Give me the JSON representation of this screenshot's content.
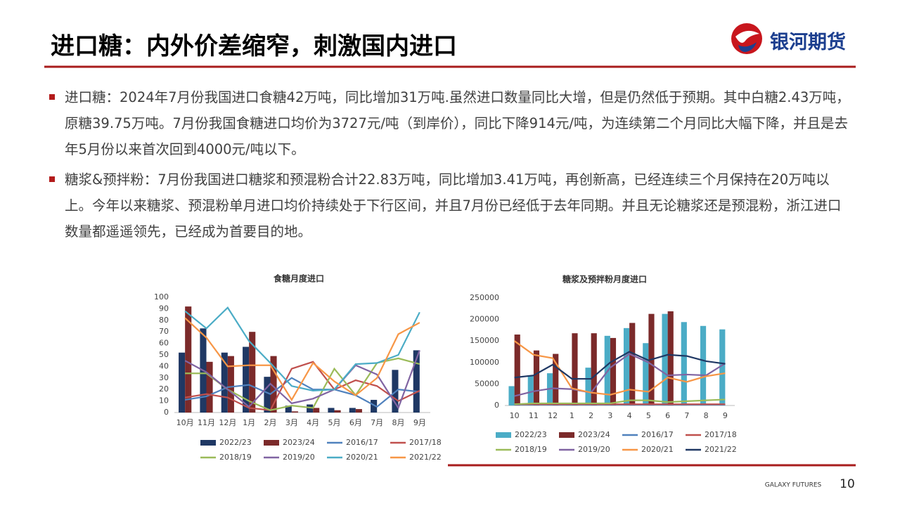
{
  "header": {
    "title": "进口糖：内外价差缩窄，刺激国内进口",
    "logo": "银河期货"
  },
  "bullets": [
    "进口糖：2024年7月份我国进口食糖42万吨，同比增加31万吨.虽然进口数量同比大增，但是仍然低于预期。其中白糖2.43万吨，原糖39.75万吨。7月份我国食糖进口均价为3727元/吨（到岸价），同比下降914元/吨，为连续第二个月同比大幅下降，并且是去年5月份以来首次回到4000元/吨以下。",
    "糖浆&预拌粉：7月份我国进口糖浆和预混粉合计22.83万吨，同比增加3.41万吨，再创新高，已经连续三个月保持在20万吨以上。今年以来糖浆、预混粉单月进口均价持续处于下行区间，并且7月份已经低于去年同期。并且无论糖浆还是预混粉，浙江进口数量都遥遥领先，已经成为首要目的地。"
  ],
  "chart_data": [
    {
      "type": "bar",
      "title": "食糖月度进口",
      "categories": [
        "10月",
        "11月",
        "12月",
        "1月",
        "2月",
        "3月",
        "4月",
        "5月",
        "6月",
        "7月",
        "8月",
        "9月"
      ],
      "ylim": [
        0,
        100
      ],
      "yticks": [
        0,
        10,
        20,
        30,
        40,
        50,
        60,
        70,
        80,
        90,
        100
      ],
      "series": [
        {
          "name": "2022/23",
          "type": "bar",
          "color": "#1f3864",
          "values": [
            52,
            73,
            52,
            57,
            31,
            6,
            7,
            4,
            4,
            11,
            37,
            54
          ]
        },
        {
          "name": "2023/24",
          "type": "bar",
          "color": "#7b2a2a",
          "values": [
            92,
            44,
            49,
            70,
            49,
            1,
            4,
            2,
            3,
            null,
            null,
            null
          ]
        },
        {
          "name": "2016/17",
          "type": "line",
          "color": "#4f81bd",
          "values": [
            11,
            14,
            22,
            24,
            16,
            30,
            20,
            20,
            15,
            5,
            20,
            18
          ]
        },
        {
          "name": "2017/18",
          "type": "line",
          "color": "#c0504d",
          "values": [
            13,
            16,
            13,
            4,
            2,
            38,
            44,
            20,
            28,
            23,
            10,
            19
          ]
        },
        {
          "name": "2018/19",
          "type": "line",
          "color": "#9bbb59",
          "values": [
            34,
            34,
            20,
            10,
            2,
            6,
            4,
            38,
            15,
            43,
            47,
            42
          ]
        },
        {
          "name": "2019/20",
          "type": "line",
          "color": "#8064a2",
          "values": [
            45,
            35,
            20,
            5,
            25,
            8,
            12,
            20,
            41,
            33,
            4,
            54
          ]
        },
        {
          "name": "2020/21",
          "type": "line",
          "color": "#4bacc6",
          "values": [
            88,
            73,
            91,
            62,
            43,
            23,
            19,
            20,
            42,
            43,
            50,
            87
          ]
        },
        {
          "name": "2021/22",
          "type": "line",
          "color": "#f79646",
          "values": [
            82,
            65,
            40,
            41,
            41,
            11,
            43,
            27,
            15,
            30,
            68,
            78
          ]
        }
      ]
    },
    {
      "type": "bar",
      "title": "糖浆及预拌粉月度进口",
      "categories": [
        "10",
        "11",
        "12",
        "1",
        "2",
        "3",
        "4",
        "5",
        "6",
        "7",
        "8",
        "9"
      ],
      "ylim": [
        0,
        250000
      ],
      "yticks": [
        0,
        50000,
        100000,
        150000,
        200000,
        250000
      ],
      "series": [
        {
          "name": "2022/23",
          "type": "bar",
          "color": "#4bacc6",
          "values": [
            45000,
            70000,
            75000,
            5000,
            88000,
            162000,
            180000,
            145000,
            213000,
            194000,
            185000,
            177000
          ]
        },
        {
          "name": "2023/24",
          "type": "bar",
          "color": "#7b2a2a",
          "values": [
            165000,
            128000,
            120000,
            168000,
            168000,
            157000,
            192000,
            213000,
            219000,
            null,
            null,
            null
          ]
        },
        {
          "name": "2016/17",
          "type": "line",
          "color": "#4f81bd",
          "values": [
            2000,
            2000,
            2000,
            2000,
            2000,
            2000,
            2000,
            2000,
            2000,
            2000,
            2000,
            2000
          ]
        },
        {
          "name": "2017/18",
          "type": "line",
          "color": "#c0504d",
          "values": [
            3000,
            3000,
            3000,
            3000,
            3000,
            3000,
            3000,
            3000,
            3000,
            3000,
            3000,
            3000
          ]
        },
        {
          "name": "2018/19",
          "type": "line",
          "color": "#9bbb59",
          "values": [
            3000,
            5000,
            5000,
            5000,
            5000,
            5000,
            12000,
            12000,
            8000,
            10000,
            12000,
            14000
          ]
        },
        {
          "name": "2019/20",
          "type": "line",
          "color": "#8064a2",
          "values": [
            22000,
            33000,
            40000,
            38000,
            30000,
            88000,
            120000,
            100000,
            70000,
            72000,
            70000,
            98000
          ]
        },
        {
          "name": "2020/21",
          "type": "line",
          "color": "#f79646",
          "values": [
            150000,
            118000,
            110000,
            40000,
            30000,
            25000,
            37000,
            32000,
            65000,
            55000,
            68000,
            75000
          ]
        },
        {
          "name": "2021/22",
          "type": "line",
          "color": "#1f3864",
          "values": [
            65000,
            70000,
            95000,
            62000,
            62000,
            100000,
            125000,
            105000,
            118000,
            115000,
            103000,
            97000
          ]
        }
      ]
    }
  ],
  "footer": {
    "brand": "GALAXY FUTURES",
    "page": "10"
  }
}
